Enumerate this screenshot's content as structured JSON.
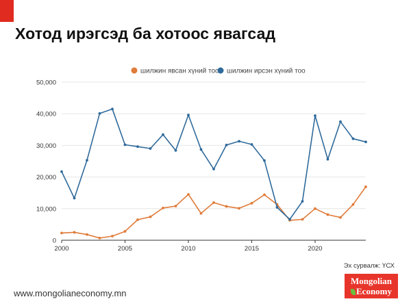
{
  "title": "Хотод ирэгсэд ба хотоос явагсад",
  "source": "Эх сурвалж: ҮСХ",
  "footer": {
    "url": "www.mongolianeconomy.mn"
  },
  "logo": {
    "line1": "Mongolian",
    "line2": "Economy"
  },
  "colors": {
    "accent": "#e02b20",
    "series_departed": "#e07b39",
    "series_arrived": "#2f6a9b",
    "grid": "#e6e6e6"
  },
  "chart_data": {
    "type": "line",
    "x": [
      2000,
      2001,
      2002,
      2003,
      2004,
      2005,
      2006,
      2007,
      2008,
      2009,
      2010,
      2011,
      2012,
      2013,
      2014,
      2015,
      2016,
      2017,
      2018,
      2019,
      2020,
      2021,
      2022,
      2023,
      2024
    ],
    "series": [
      {
        "name": "шилжин явсан хүний тоо",
        "color": "#e07b39",
        "values": [
          2300,
          2500,
          1800,
          700,
          1300,
          2800,
          6500,
          7400,
          10200,
          10800,
          14500,
          8500,
          11900,
          10700,
          10100,
          11700,
          14400,
          11300,
          6300,
          6600,
          10000,
          8100,
          7200,
          11300,
          16900
        ]
      },
      {
        "name": "шилжин ирсэн хүний тоо",
        "color": "#2f6a9b",
        "values": [
          21700,
          13300,
          25300,
          40100,
          41500,
          30200,
          29600,
          29000,
          33400,
          28400,
          39600,
          28700,
          22500,
          30100,
          31300,
          30300,
          25200,
          10400,
          6600,
          12300,
          39400,
          25600,
          37500,
          32100,
          31100
        ]
      }
    ],
    "xticks": [
      "2000",
      "2005",
      "2010",
      "2015",
      "2020"
    ],
    "yticks": [
      "0",
      "10,000",
      "20,000",
      "30,000",
      "40,000",
      "50,000"
    ],
    "xlim": [
      2000,
      2024
    ],
    "ylim": [
      0,
      50000
    ],
    "grid": "horizontal",
    "legend_position": "top-center"
  }
}
